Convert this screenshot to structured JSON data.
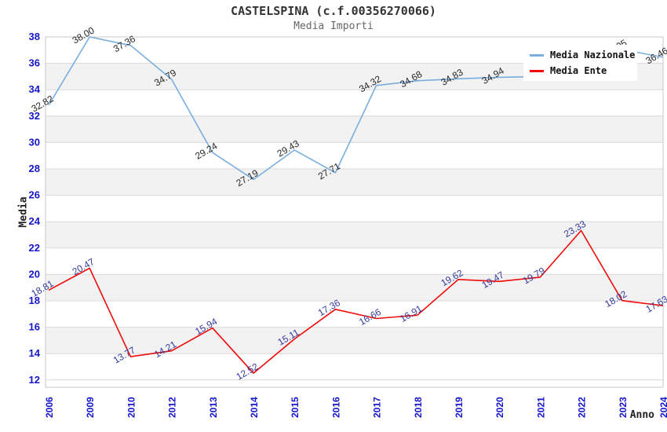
{
  "title": "CASTELSPINA (c.f.00356270066)",
  "subtitle": "Media Importi",
  "chart_data": {
    "type": "line",
    "title": "CASTELSPINA (c.f.00356270066)",
    "subtitle": "Media Importi",
    "xlabel": "Anno",
    "ylabel": "Media",
    "ylim": [
      12,
      38
    ],
    "ytick_step": 2,
    "grid": true,
    "band_color": "#f2f2f2",
    "grid_color": "#d9d9d9",
    "border_color": "#c8c8c8",
    "axis_text_color": "#1515cc",
    "legend_position": "top-right",
    "categories": [
      "2006",
      "2009",
      "2010",
      "2012",
      "2013",
      "2014",
      "2015",
      "2016",
      "2017",
      "2018",
      "2019",
      "2020",
      "2021",
      "2022",
      "2023",
      "2024"
    ],
    "series": [
      {
        "name": "Media Nazionale",
        "color": "#7aaede",
        "label_color": "#262626",
        "values": [
          32.82,
          38.0,
          37.36,
          34.79,
          29.24,
          27.19,
          29.43,
          27.71,
          34.32,
          34.68,
          34.83,
          34.94,
          35.0,
          36.3,
          37.05,
          36.46
        ],
        "labels": [
          "32.82",
          "38.00",
          "37.36",
          "34.79",
          "29.24",
          "27.19",
          "29.43",
          "27.71",
          "34.32",
          "34.68",
          "34.83",
          "34.94",
          "",
          "",
          "37.05",
          "36.46"
        ]
      },
      {
        "name": "Media Ente",
        "color": "#f00a0a",
        "label_color": "#333a9e",
        "values": [
          18.81,
          20.47,
          13.77,
          14.21,
          15.94,
          12.52,
          15.11,
          17.36,
          16.66,
          16.91,
          19.62,
          19.47,
          19.79,
          23.33,
          18.02,
          17.63
        ],
        "labels": [
          "18.81",
          "20.47",
          "13.77",
          "14.21",
          "15.94",
          "12.52",
          "15.11",
          "17.36",
          "16.66",
          "16.91",
          "19.62",
          "19.47",
          "19.79",
          "23.33",
          "18.02",
          "17.63"
        ]
      }
    ]
  }
}
